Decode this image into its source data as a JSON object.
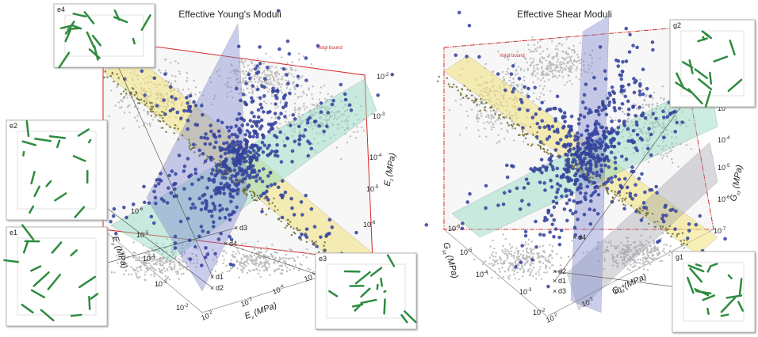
{
  "panels": [
    {
      "title": "Effective Young's Moduli",
      "bound_label": "Voigt bound",
      "axes": [
        {
          "symbol": "E",
          "sub": "z",
          "unit": "(MPa)",
          "ticks": [
            {
              "base": "10",
              "exp": "-2"
            },
            {
              "base": "10",
              "exp": "-3"
            },
            {
              "base": "10",
              "exp": "-4"
            },
            {
              "base": "10",
              "exp": "-5"
            },
            {
              "base": "10",
              "exp": "-6"
            }
          ]
        },
        {
          "symbol": "E",
          "sub": "x",
          "unit": "(MPa)",
          "ticks": [
            {
              "base": "10",
              "exp": "-2"
            },
            {
              "base": "10",
              "exp": "-3"
            },
            {
              "base": "10",
              "exp": "-4"
            },
            {
              "base": "10",
              "exp": "-5"
            }
          ]
        },
        {
          "symbol": "E",
          "sub": "y",
          "unit": "(MPa)",
          "ticks": [
            {
              "base": "10",
              "exp": "-2"
            },
            {
              "base": "10",
              "exp": "-3"
            },
            {
              "base": "10",
              "exp": "-4"
            },
            {
              "base": "10",
              "exp": "-5"
            },
            {
              "base": "10",
              "exp": "-6"
            }
          ]
        }
      ],
      "insets": [
        "e4",
        "e2",
        "e1",
        "e3"
      ],
      "points": [
        "d1",
        "d2",
        "d3",
        "d4"
      ]
    },
    {
      "title": "Effective Shear Moduli",
      "bound_label": "Voigt bound",
      "axes": [
        {
          "symbol": "G",
          "sub": "xy",
          "unit": "(MPa)",
          "ticks": [
            {
              "base": "10",
              "exp": "-3"
            },
            {
              "base": "10",
              "exp": "-4"
            },
            {
              "base": "10",
              "exp": "-5"
            },
            {
              "base": "10",
              "exp": "-6"
            },
            {
              "base": "10",
              "exp": "-7"
            }
          ]
        },
        {
          "symbol": "G",
          "sub": "xz",
          "unit": "(MPa)",
          "ticks": [
            {
              "base": "10",
              "exp": "-2"
            },
            {
              "base": "10",
              "exp": "-3"
            },
            {
              "base": "10",
              "exp": "-4"
            }
          ]
        },
        {
          "symbol": "G",
          "sub": "yz",
          "unit": "(MPa)",
          "ticks": [
            {
              "base": "10",
              "exp": "-2"
            },
            {
              "base": "10",
              "exp": "-3"
            },
            {
              "base": "10",
              "exp": "-4"
            },
            {
              "base": "10",
              "exp": "-5"
            },
            {
              "base": "10",
              "exp": "-6"
            }
          ]
        }
      ],
      "insets": [
        "g2",
        "g1"
      ],
      "points": [
        "d1",
        "d2",
        "d3",
        "d4"
      ]
    }
  ]
}
